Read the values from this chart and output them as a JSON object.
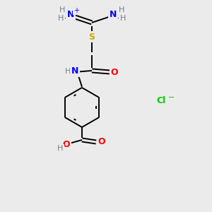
{
  "bg_color": "#ebebeb",
  "atom_colors": {
    "C": "#000000",
    "H": "#708090",
    "N": "#0000ff",
    "O": "#ff0000",
    "S": "#ccaa00",
    "Cl": "#00cc00"
  }
}
